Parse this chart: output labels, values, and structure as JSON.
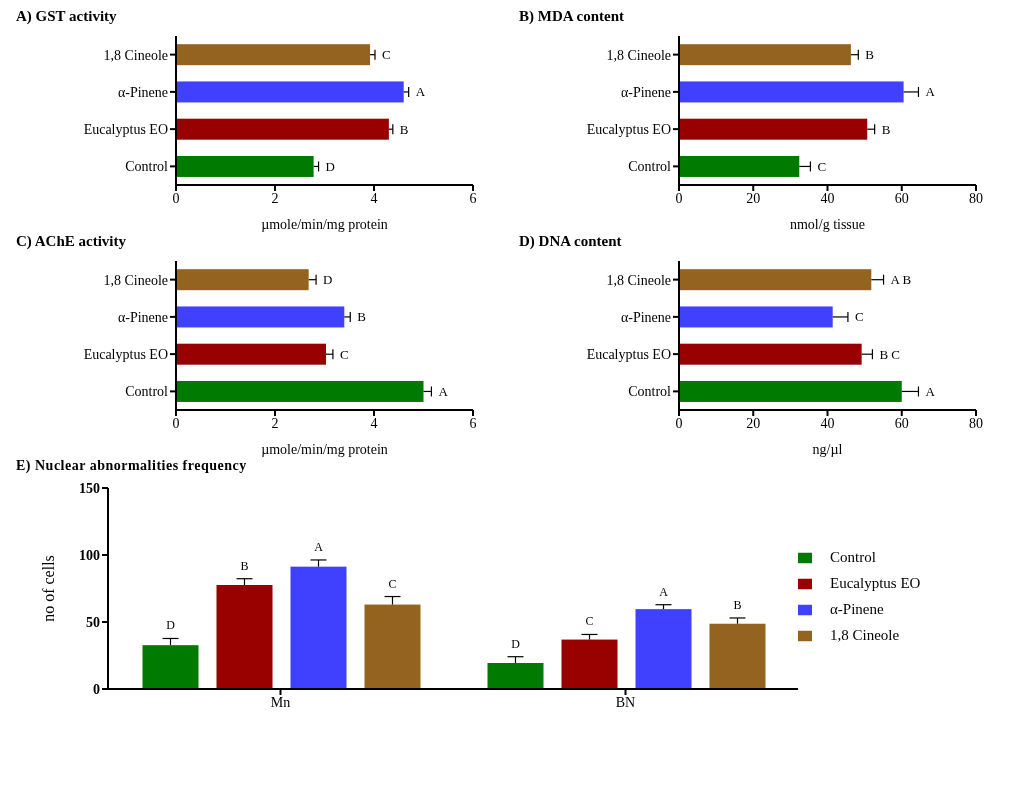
{
  "chart_data": [
    {
      "type": "bar",
      "orientation": "horizontal",
      "title": "A) GST activity",
      "xlabel": "µmole/min/mg protein",
      "categories": [
        "1,8 Cineole",
        "α-Pinene",
        "Eucalyptus EO",
        "Control"
      ],
      "values": [
        3.92,
        4.6,
        4.3,
        2.78
      ],
      "errors": [
        0.1,
        0.1,
        0.08,
        0.1
      ],
      "value_labels": [
        "C",
        "A",
        "B",
        "D"
      ],
      "colors": [
        "#94631f",
        "#4040ff",
        "#990000",
        "#007a00"
      ],
      "xlim": [
        0,
        6
      ],
      "xticks": [
        0,
        2,
        4,
        6
      ]
    },
    {
      "type": "bar",
      "orientation": "horizontal",
      "title": "B) MDA content",
      "xlabel": "nmol/g tissue",
      "categories": [
        "1,8 Cineole",
        "α-Pinene",
        "Eucalyptus EO",
        "Control"
      ],
      "values": [
        46.3,
        60.5,
        50.7,
        32.4
      ],
      "errors": [
        2,
        4,
        2,
        3
      ],
      "value_labels": [
        "B",
        "A",
        "B",
        "C"
      ],
      "colors": [
        "#94631f",
        "#4040ff",
        "#990000",
        "#007a00"
      ],
      "xlim": [
        0,
        80
      ],
      "xticks": [
        0,
        20,
        40,
        60,
        80
      ]
    },
    {
      "type": "bar",
      "orientation": "horizontal",
      "title": "C) AChE activity",
      "xlabel": "µmole/min/mg protein",
      "categories": [
        "1,8 Cineole",
        "α-Pinene",
        "Eucalyptus EO",
        "Control"
      ],
      "values": [
        2.68,
        3.4,
        3.03,
        5.0
      ],
      "errors": [
        0.15,
        0.12,
        0.14,
        0.16
      ],
      "value_labels": [
        "D",
        "B",
        "C",
        "A"
      ],
      "colors": [
        "#94631f",
        "#4040ff",
        "#990000",
        "#007a00"
      ],
      "xlim": [
        0,
        6
      ],
      "xticks": [
        0,
        2,
        4,
        6
      ]
    },
    {
      "type": "bar",
      "orientation": "horizontal",
      "title": "D) DNA content",
      "xlabel": "ng/µl",
      "categories": [
        "1,8 Cineole",
        "α-Pinene",
        "Eucalyptus EO",
        "Control"
      ],
      "values": [
        51.8,
        41.4,
        49.2,
        60
      ],
      "errors": [
        3.3,
        4.1,
        2.9,
        4.5
      ],
      "value_labels": [
        "A B",
        "C",
        "B C",
        "A"
      ],
      "colors": [
        "#94631f",
        "#4040ff",
        "#990000",
        "#007a00"
      ],
      "xlim": [
        0,
        80
      ],
      "xticks": [
        0,
        20,
        40,
        60,
        80
      ]
    },
    {
      "type": "bar",
      "title": "E) Nuclear abnormalities frequency",
      "ylabel": "no of cells",
      "categories": [
        "Mn",
        "BN"
      ],
      "ylim": [
        0,
        150
      ],
      "yticks": [
        0,
        50,
        100,
        150
      ],
      "legend": "right",
      "series": [
        {
          "name": "Control",
          "color": "#007a00",
          "values": [
            32.7,
            19.4
          ],
          "errors": [
            5,
            4.7
          ],
          "value_labels": [
            "D",
            "D"
          ]
        },
        {
          "name": "Eucalyptus EO",
          "color": "#990000",
          "values": [
            77.6,
            36.9
          ],
          "errors": [
            4.7,
            3.8
          ],
          "value_labels": [
            "B",
            "C"
          ]
        },
        {
          "name": "α-Pinene",
          "color": "#4040ff",
          "values": [
            91.3,
            59.6
          ],
          "errors": [
            5,
            3.3
          ],
          "value_labels": [
            "A",
            "A"
          ]
        },
        {
          "name": "1,8 Cineole",
          "color": "#94631f",
          "values": [
            63,
            48.7
          ],
          "errors": [
            6,
            4.3
          ],
          "value_labels": [
            "C",
            "B"
          ]
        }
      ]
    }
  ]
}
